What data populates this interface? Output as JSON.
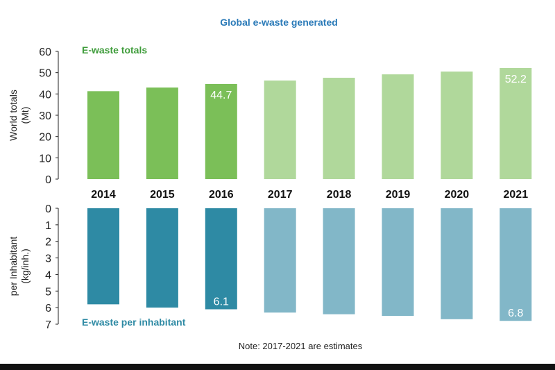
{
  "chart_data": {
    "type": "bar",
    "title": "Global e-waste generated",
    "note": "Note: 2017-2021 are estimates",
    "categories": [
      "2014",
      "2015",
      "2016",
      "2017",
      "2018",
      "2019",
      "2020",
      "2021"
    ],
    "estimate_from": "2017",
    "colors": {
      "title": "#2a7ab8",
      "totals_actual": "#7bbf58",
      "totals_estimate": "#b0d89b",
      "totals_label": "#3e9c3a",
      "per_inhabitant_actual": "#2e8aa4",
      "per_inhabitant_estimate": "#82b7c8",
      "per_inhabitant_label": "#2e8aa4",
      "data_label": "#ffffff",
      "axis": "#222222"
    },
    "panels": {
      "totals": {
        "name": "E-waste totals",
        "ylabel": [
          "World totals",
          "(Mt)"
        ],
        "ylim": [
          0,
          60
        ],
        "yticks": [
          0,
          10,
          20,
          30,
          40,
          50,
          60
        ],
        "values": [
          41.3,
          43.0,
          44.7,
          46.3,
          47.6,
          49.2,
          50.5,
          52.2
        ],
        "data_labels": [
          {
            "category": "2016",
            "text": "44.7"
          },
          {
            "category": "2021",
            "text": "52.2"
          }
        ]
      },
      "per_inhabitant": {
        "name": "E-waste per inhabitant",
        "ylabel": [
          "per Inhabitant",
          "(kg/inh.)"
        ],
        "ylim": [
          0,
          7
        ],
        "yticks": [
          0,
          1,
          2,
          3,
          4,
          5,
          6,
          7
        ],
        "inverted": true,
        "values": [
          5.8,
          6.0,
          6.1,
          6.3,
          6.4,
          6.5,
          6.7,
          6.8
        ],
        "data_labels": [
          {
            "category": "2016",
            "text": "6.1"
          },
          {
            "category": "2021",
            "text": "6.8"
          }
        ]
      }
    }
  }
}
